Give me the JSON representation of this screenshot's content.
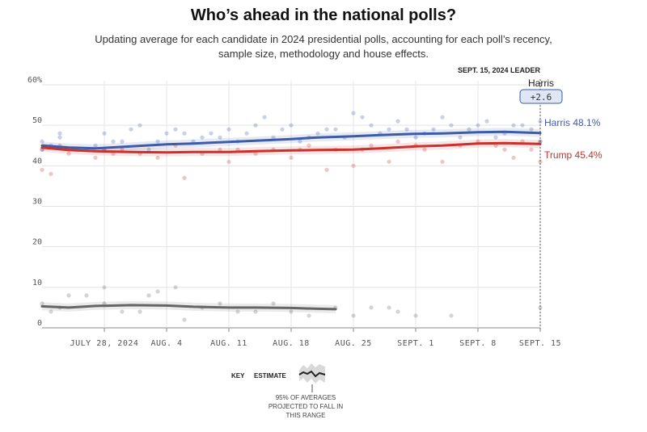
{
  "title": "Who’s ahead in the national polls?",
  "subtitle": "Updating average for each candidate in 2024 presidential polls, accounting for each poll’s recency, sample size, methodology and house effects.",
  "leader": {
    "heading": "SEPT. 15, 2024 LEADER",
    "name": "Harris",
    "margin": "+2.6"
  },
  "key": {
    "key_label": "KEY",
    "estimate_label": "ESTIMATE",
    "range_caption": [
      "95% OF AVERAGES",
      "PROJECTED TO FALL IN",
      "THIS RANGE"
    ]
  },
  "colors": {
    "harris": "#3d5ba8",
    "trump": "#c8312c",
    "other": "#666666"
  },
  "chart_data": {
    "type": "line",
    "x_domain": [
      "2024-07-21",
      "2024-09-15"
    ],
    "ylim": [
      0,
      60
    ],
    "y_ticks": [
      0,
      10,
      20,
      30,
      40,
      50,
      60
    ],
    "y_tick_labels": [
      "0",
      "10",
      "20",
      "30",
      "40",
      "50",
      "60%"
    ],
    "x_ticks": [
      {
        "date": "2024-07-28",
        "label": "JULY 28, 2024"
      },
      {
        "date": "2024-08-04",
        "label": "AUG. 4"
      },
      {
        "date": "2024-08-11",
        "label": "AUG. 11"
      },
      {
        "date": "2024-08-18",
        "label": "AUG. 18"
      },
      {
        "date": "2024-08-25",
        "label": "AUG. 25"
      },
      {
        "date": "2024-09-01",
        "label": "SEPT. 1"
      },
      {
        "date": "2024-09-08",
        "label": "SEPT. 8"
      },
      {
        "date": "2024-09-15",
        "label": "SEPT. 15"
      }
    ],
    "grid": true,
    "series": [
      {
        "key": "harris",
        "name": "Harris",
        "label": "Harris 48.1%",
        "band_width": 1.0,
        "x": [
          "2024-07-21",
          "2024-07-24",
          "2024-07-27",
          "2024-07-31",
          "2024-08-04",
          "2024-08-07",
          "2024-08-11",
          "2024-08-14",
          "2024-08-18",
          "2024-08-21",
          "2024-08-25",
          "2024-08-28",
          "2024-09-01",
          "2024-09-04",
          "2024-09-08",
          "2024-09-11",
          "2024-09-15"
        ],
        "values": [
          45.0,
          44.5,
          44.3,
          44.8,
          45.3,
          45.5,
          45.9,
          46.2,
          46.6,
          47.0,
          47.3,
          47.6,
          47.9,
          48.0,
          48.3,
          48.4,
          48.1
        ]
      },
      {
        "key": "trump",
        "name": "Trump",
        "label": "Trump 45.4%",
        "band_width": 1.0,
        "x": [
          "2024-07-21",
          "2024-07-24",
          "2024-07-27",
          "2024-07-31",
          "2024-08-04",
          "2024-08-07",
          "2024-08-11",
          "2024-08-14",
          "2024-08-18",
          "2024-08-21",
          "2024-08-25",
          "2024-08-28",
          "2024-09-01",
          "2024-09-04",
          "2024-09-08",
          "2024-09-11",
          "2024-09-15"
        ],
        "values": [
          44.5,
          43.9,
          43.6,
          43.4,
          43.3,
          43.4,
          43.4,
          43.6,
          43.8,
          43.9,
          44.0,
          44.3,
          44.8,
          45.0,
          45.5,
          45.6,
          45.4
        ]
      },
      {
        "key": "other",
        "name": "Other",
        "label": "",
        "band_width": 1.0,
        "x": [
          "2024-07-21",
          "2024-07-24",
          "2024-07-27",
          "2024-07-31",
          "2024-08-04",
          "2024-08-07",
          "2024-08-11",
          "2024-08-14",
          "2024-08-18",
          "2024-08-21",
          "2024-08-23"
        ],
        "values": [
          5.3,
          5.0,
          5.4,
          5.6,
          5.5,
          5.2,
          5.0,
          5.0,
          4.9,
          4.7,
          4.6
        ]
      }
    ],
    "polls": {
      "harris": [
        [
          "2024-07-21",
          46
        ],
        [
          "2024-07-21",
          44
        ],
        [
          "2024-07-22",
          45
        ],
        [
          "2024-07-23",
          47
        ],
        [
          "2024-07-23",
          48
        ],
        [
          "2024-07-25",
          44
        ],
        [
          "2024-07-27",
          45
        ],
        [
          "2024-07-28",
          48
        ],
        [
          "2024-07-28",
          44
        ],
        [
          "2024-07-29",
          46
        ],
        [
          "2024-07-30",
          46
        ],
        [
          "2024-07-31",
          49
        ],
        [
          "2024-08-01",
          50
        ],
        [
          "2024-08-02",
          44
        ],
        [
          "2024-08-03",
          46
        ],
        [
          "2024-08-04",
          48
        ],
        [
          "2024-08-05",
          49
        ],
        [
          "2024-08-06",
          48
        ],
        [
          "2024-08-07",
          46
        ],
        [
          "2024-08-08",
          47
        ],
        [
          "2024-08-09",
          48
        ],
        [
          "2024-08-10",
          47
        ],
        [
          "2024-08-11",
          49
        ],
        [
          "2024-08-12",
          46
        ],
        [
          "2024-08-13",
          48
        ],
        [
          "2024-08-14",
          50
        ],
        [
          "2024-08-15",
          52
        ],
        [
          "2024-08-16",
          47
        ],
        [
          "2024-08-17",
          49
        ],
        [
          "2024-08-18",
          50
        ],
        [
          "2024-08-19",
          46
        ],
        [
          "2024-08-20",
          47
        ],
        [
          "2024-08-21",
          48
        ],
        [
          "2024-08-22",
          49
        ],
        [
          "2024-08-23",
          49
        ],
        [
          "2024-08-24",
          47
        ],
        [
          "2024-08-25",
          53
        ],
        [
          "2024-08-26",
          52
        ],
        [
          "2024-08-27",
          50
        ],
        [
          "2024-08-28",
          48
        ],
        [
          "2024-08-29",
          49
        ],
        [
          "2024-08-30",
          51
        ],
        [
          "2024-08-31",
          49
        ],
        [
          "2024-09-01",
          47
        ],
        [
          "2024-09-02",
          48
        ],
        [
          "2024-09-03",
          49
        ],
        [
          "2024-09-04",
          52
        ],
        [
          "2024-09-05",
          50
        ],
        [
          "2024-09-06",
          47
        ],
        [
          "2024-09-07",
          49
        ],
        [
          "2024-09-08",
          50
        ],
        [
          "2024-09-09",
          51
        ],
        [
          "2024-09-10",
          47
        ],
        [
          "2024-09-11",
          48
        ],
        [
          "2024-09-12",
          50
        ],
        [
          "2024-09-13",
          50
        ],
        [
          "2024-09-14",
          49
        ],
        [
          "2024-09-15",
          46
        ],
        [
          "2024-09-15",
          51
        ]
      ],
      "trump": [
        [
          "2024-07-21",
          44
        ],
        [
          "2024-07-21",
          39
        ],
        [
          "2024-07-22",
          38
        ],
        [
          "2024-07-23",
          45
        ],
        [
          "2024-07-24",
          43
        ],
        [
          "2024-07-26",
          44
        ],
        [
          "2024-07-27",
          42
        ],
        [
          "2024-07-28",
          44
        ],
        [
          "2024-07-29",
          43
        ],
        [
          "2024-07-30",
          44
        ],
        [
          "2024-08-01",
          43
        ],
        [
          "2024-08-03",
          42
        ],
        [
          "2024-08-05",
          45
        ],
        [
          "2024-08-06",
          37
        ],
        [
          "2024-08-08",
          43
        ],
        [
          "2024-08-10",
          44
        ],
        [
          "2024-08-11",
          41
        ],
        [
          "2024-08-12",
          44
        ],
        [
          "2024-08-14",
          43
        ],
        [
          "2024-08-16",
          44
        ],
        [
          "2024-08-18",
          42
        ],
        [
          "2024-08-19",
          44
        ],
        [
          "2024-08-20",
          45
        ],
        [
          "2024-08-22",
          39
        ],
        [
          "2024-08-23",
          44
        ],
        [
          "2024-08-25",
          40
        ],
        [
          "2024-08-26",
          44
        ],
        [
          "2024-08-27",
          45
        ],
        [
          "2024-08-29",
          41
        ],
        [
          "2024-08-30",
          46
        ],
        [
          "2024-09-01",
          45
        ],
        [
          "2024-09-02",
          44
        ],
        [
          "2024-09-04",
          41
        ],
        [
          "2024-09-06",
          45
        ],
        [
          "2024-09-08",
          46
        ],
        [
          "2024-09-10",
          45
        ],
        [
          "2024-09-11",
          44
        ],
        [
          "2024-09-12",
          42
        ],
        [
          "2024-09-13",
          46
        ],
        [
          "2024-09-14",
          44
        ],
        [
          "2024-09-15",
          41
        ],
        [
          "2024-09-15",
          46
        ]
      ],
      "other": [
        [
          "2024-07-21",
          6
        ],
        [
          "2024-07-22",
          4
        ],
        [
          "2024-07-23",
          5
        ],
        [
          "2024-07-24",
          8
        ],
        [
          "2024-07-26",
          8
        ],
        [
          "2024-07-28",
          10
        ],
        [
          "2024-07-28",
          6
        ],
        [
          "2024-07-30",
          4
        ],
        [
          "2024-08-01",
          4
        ],
        [
          "2024-08-02",
          8
        ],
        [
          "2024-08-03",
          9
        ],
        [
          "2024-08-05",
          10
        ],
        [
          "2024-08-06",
          2
        ],
        [
          "2024-08-08",
          5
        ],
        [
          "2024-08-10",
          6
        ],
        [
          "2024-08-12",
          4
        ],
        [
          "2024-08-14",
          4
        ],
        [
          "2024-08-16",
          6
        ],
        [
          "2024-08-18",
          4
        ],
        [
          "2024-08-20",
          3
        ],
        [
          "2024-08-23",
          5
        ],
        [
          "2024-08-25",
          3
        ],
        [
          "2024-08-27",
          5
        ],
        [
          "2024-08-29",
          5
        ],
        [
          "2024-08-30",
          4
        ],
        [
          "2024-09-01",
          3
        ],
        [
          "2024-09-05",
          3
        ],
        [
          "2024-09-15",
          5
        ]
      ]
    }
  }
}
